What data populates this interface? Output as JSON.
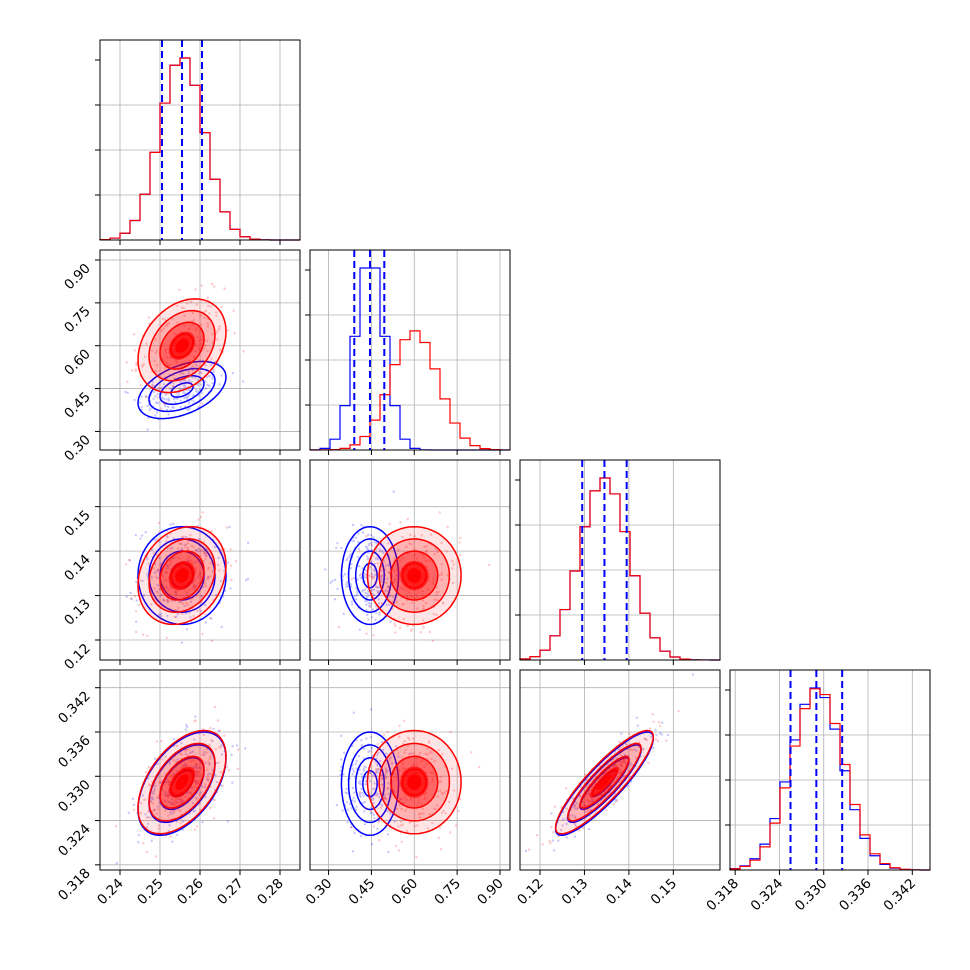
{
  "chart_data": {
    "type": "corner",
    "title": "",
    "n_params": 4,
    "grid": true,
    "colors": {
      "blue": "#0000ff",
      "red": "#ff0000"
    },
    "series": [
      {
        "name": "",
        "color": "#0000ff",
        "mean": [
          0.2555,
          0.445,
          0.1345,
          0.329
        ],
        "std": [
          0.0055,
          0.05,
          0.0055,
          0.0035
        ],
        "quantiles": [
          [
            0.2505,
            0.2555,
            0.2605
          ],
          [
            0.39,
            0.445,
            0.495
          ],
          [
            0.1295,
            0.1345,
            0.1395
          ],
          [
            0.3255,
            0.329,
            0.3325
          ]
        ]
      },
      {
        "name": "",
        "color": "#ff0000",
        "mean": [
          0.2555,
          0.6,
          0.1345,
          0.3292
        ],
        "std": [
          0.0055,
          0.082,
          0.0055,
          0.0035
        ]
      }
    ],
    "correlations": [
      {
        "pair": [
          0,
          1
        ],
        "blue": 0.45,
        "red": 0.3
      },
      {
        "pair": [
          0,
          2
        ],
        "blue": 0.0,
        "red": 0.2
      },
      {
        "pair": [
          1,
          2
        ],
        "blue": 0.0,
        "red": 0.0
      },
      {
        "pair": [
          0,
          3
        ],
        "blue": 0.5,
        "red": 0.5
      },
      {
        "pair": [
          1,
          3
        ],
        "blue": 0.0,
        "red": 0.0
      },
      {
        "pair": [
          2,
          3
        ],
        "blue": 0.88,
        "red": 0.88
      }
    ],
    "axes": [
      {
        "index": 0,
        "lim": [
          0.235,
          0.285
        ],
        "ticks": [
          0.24,
          0.25,
          0.26,
          0.27,
          0.28
        ],
        "tick_labels": [
          "0.24",
          "0.25",
          "0.26",
          "0.27",
          "0.28"
        ]
      },
      {
        "index": 1,
        "lim": [
          0.235,
          0.935
        ],
        "ticks": [
          0.3,
          0.45,
          0.6,
          0.75,
          0.9
        ],
        "tick_labels": [
          "0.30",
          "0.45",
          "0.60",
          "0.75",
          "0.90"
        ]
      },
      {
        "index": 2,
        "lim": [
          0.1155,
          0.1605
        ],
        "ticks": [
          0.12,
          0.13,
          0.14,
          0.15
        ],
        "tick_labels": [
          "0.12",
          "0.13",
          "0.14",
          "0.15"
        ]
      },
      {
        "index": 3,
        "lim": [
          0.3173,
          0.3444
        ],
        "ticks": [
          0.318,
          0.324,
          0.33,
          0.336,
          0.342
        ],
        "tick_labels": [
          "0.318",
          "0.324",
          "0.330",
          "0.336",
          "0.342"
        ]
      }
    ]
  }
}
